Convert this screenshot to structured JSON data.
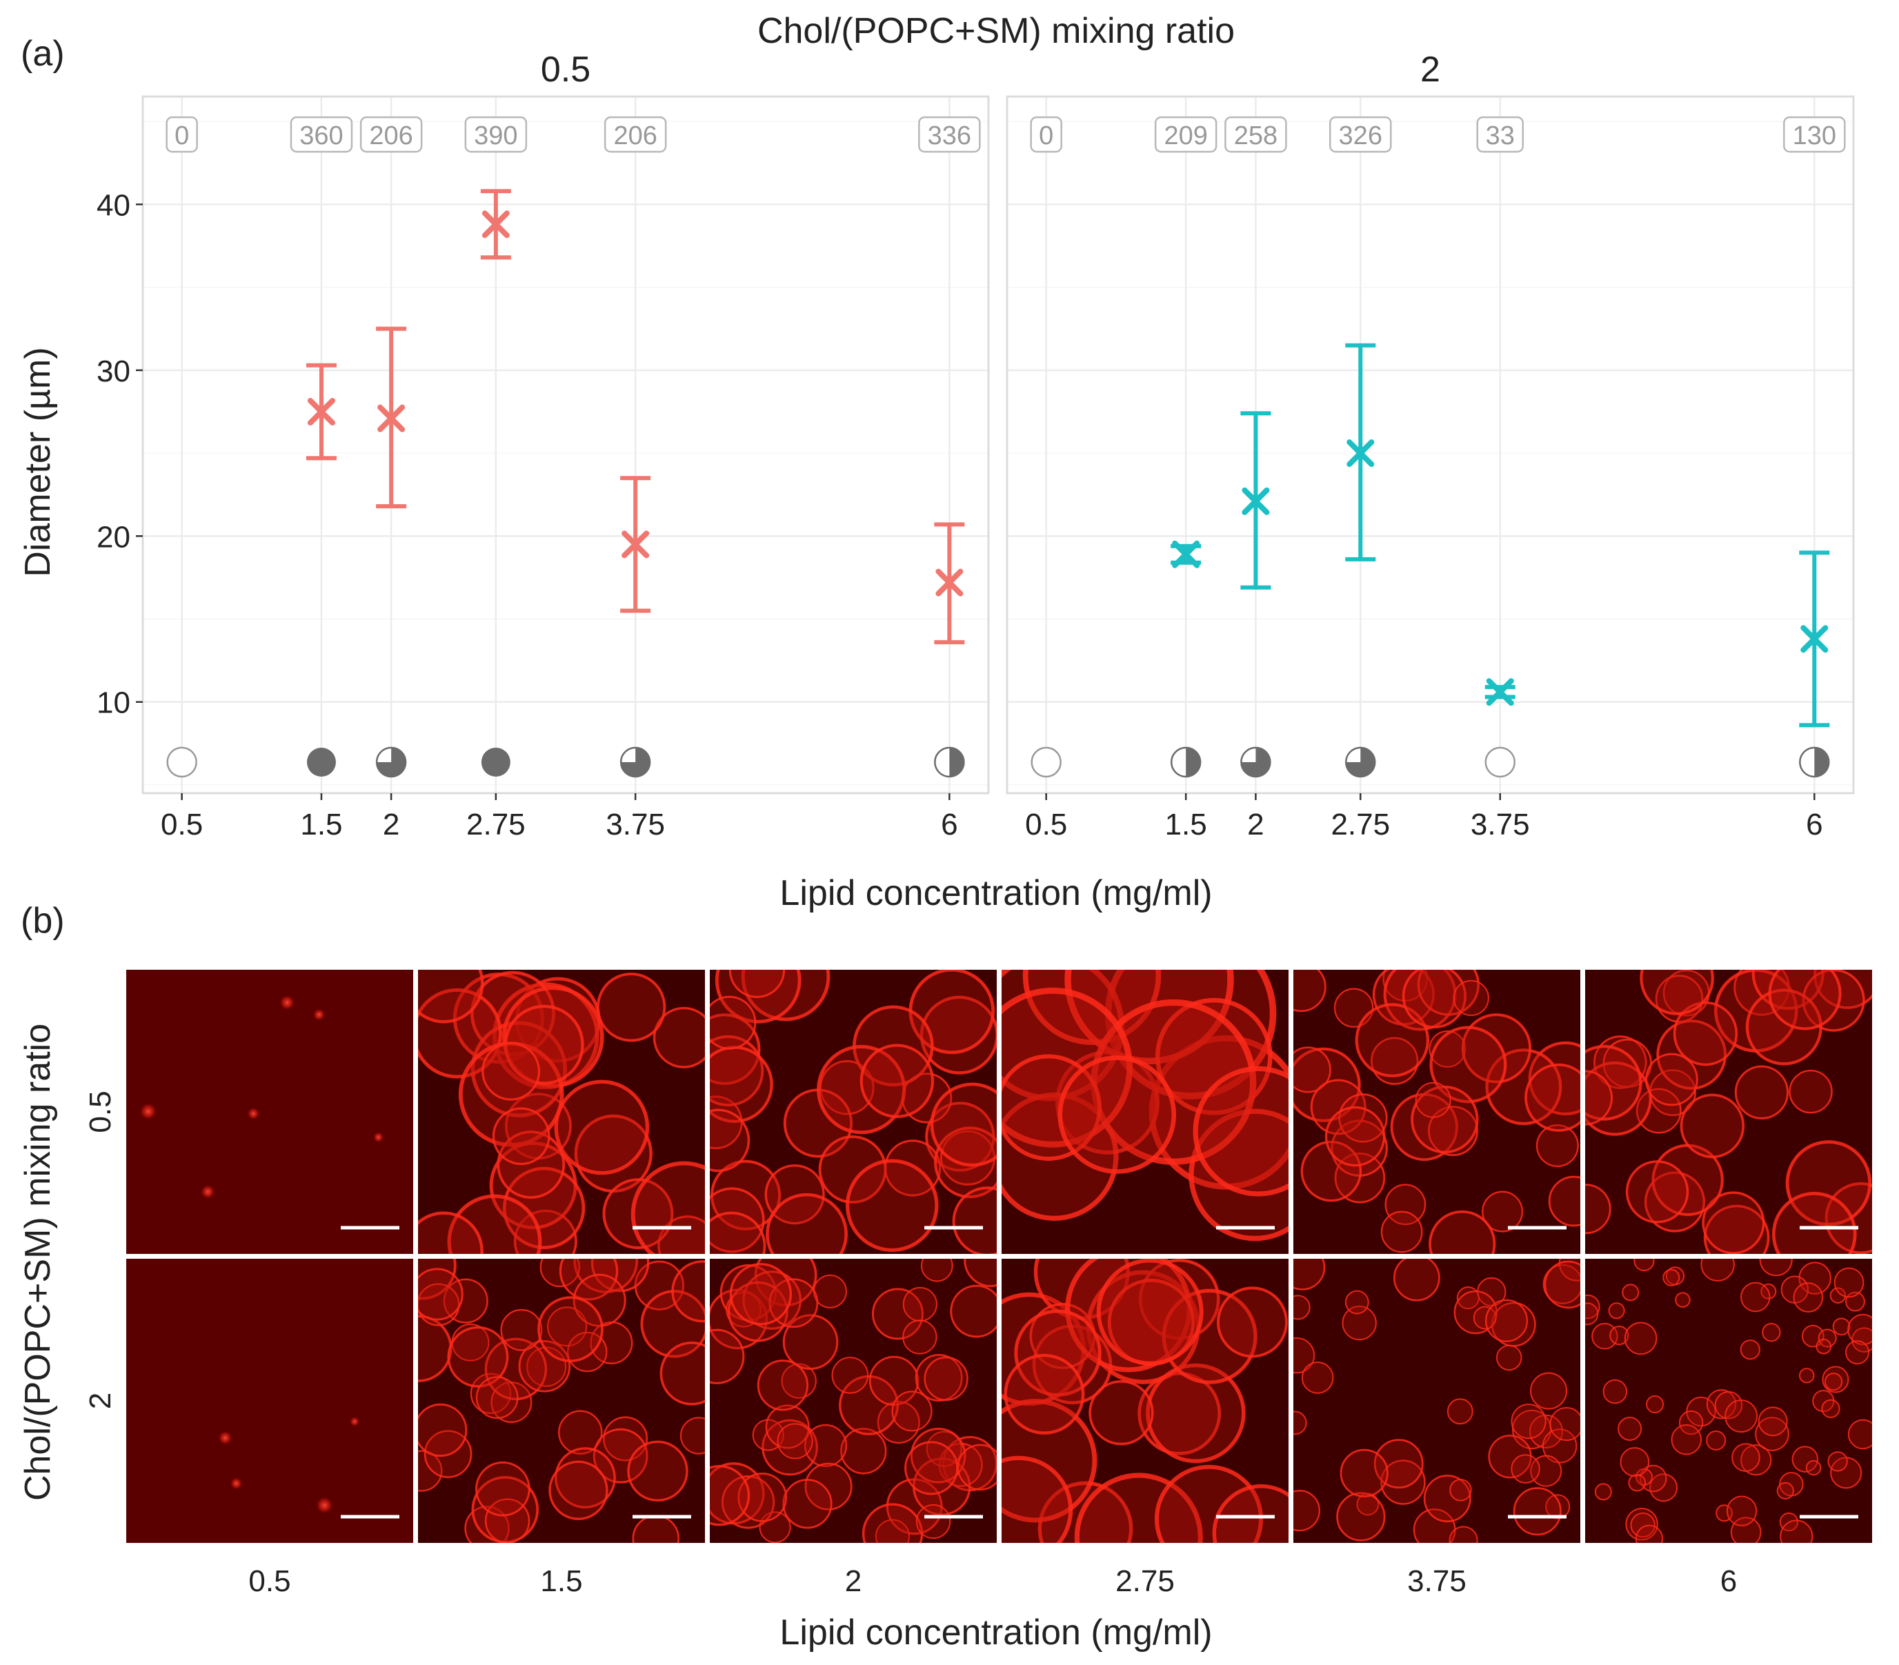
{
  "panel_a": {
    "label": "(a)",
    "top_title": "Chol/(POPC+SM) mixing ratio",
    "x_title": "Lipid concentration (mg/ml)",
    "y_title": "Diameter (µm)"
  },
  "panel_b": {
    "label": "(b)",
    "y_title": "Chol/(POPC+SM) mixing ratio",
    "x_title": "Lipid concentration (mg/ml)",
    "col_labels": [
      "0.5",
      "1.5",
      "2",
      "2.75",
      "3.75",
      "6"
    ],
    "row_labels": [
      "0.5",
      "2"
    ]
  },
  "chart_data": {
    "type": "scatter",
    "xlabel": "Lipid concentration (mg/ml)",
    "ylabel": "Diameter (µm)",
    "ylim": [
      4.5,
      46.5
    ],
    "ticks_y": [
      10,
      20,
      30,
      40
    ],
    "x_ticks": [
      "0.5",
      "1.5",
      "2",
      "2.75",
      "3.75",
      "6"
    ],
    "xlim": [
      0.22,
      6.28
    ],
    "grid": true,
    "colors": {
      "ratio_0.5": "#f0776f",
      "ratio_2": "#1cbfc4",
      "symbol": "#6b6b6b"
    },
    "panels": [
      {
        "facet": "0.5",
        "color": "#f0776f",
        "points": [
          {
            "x": 0.5,
            "n": "0",
            "fill": "empty"
          },
          {
            "x": 1.5,
            "n": "360",
            "mean": 27.5,
            "lo": 24.7,
            "hi": 30.3,
            "fill": "full"
          },
          {
            "x": 2,
            "n": "206",
            "mean": 27.1,
            "lo": 21.8,
            "hi": 32.5,
            "fill": "three-quarter"
          },
          {
            "x": 2.75,
            "n": "390",
            "mean": 38.8,
            "lo": 36.8,
            "hi": 40.8,
            "fill": "full"
          },
          {
            "x": 3.75,
            "n": "206",
            "mean": 19.5,
            "lo": 15.5,
            "hi": 23.5,
            "fill": "three-quarter"
          },
          {
            "x": 6,
            "n": "336",
            "mean": 17.2,
            "lo": 13.6,
            "hi": 20.7,
            "fill": "half"
          }
        ]
      },
      {
        "facet": "2",
        "color": "#1cbfc4",
        "points": [
          {
            "x": 0.5,
            "n": "0",
            "fill": "empty"
          },
          {
            "x": 1.5,
            "n": "209",
            "mean": 18.9,
            "lo": 18.4,
            "hi": 19.4,
            "fill": "half"
          },
          {
            "x": 2,
            "n": "258",
            "mean": 22.1,
            "lo": 16.9,
            "hi": 27.4,
            "fill": "three-quarter"
          },
          {
            "x": 2.75,
            "n": "326",
            "mean": 25.0,
            "lo": 18.6,
            "hi": 31.5,
            "fill": "three-quarter"
          },
          {
            "x": 3.75,
            "n": "33",
            "mean": 10.6,
            "lo": 10.3,
            "hi": 10.9,
            "fill": "empty"
          },
          {
            "x": 6,
            "n": "130",
            "mean": 13.8,
            "lo": 8.6,
            "hi": 19.0,
            "fill": "half"
          }
        ]
      }
    ]
  }
}
